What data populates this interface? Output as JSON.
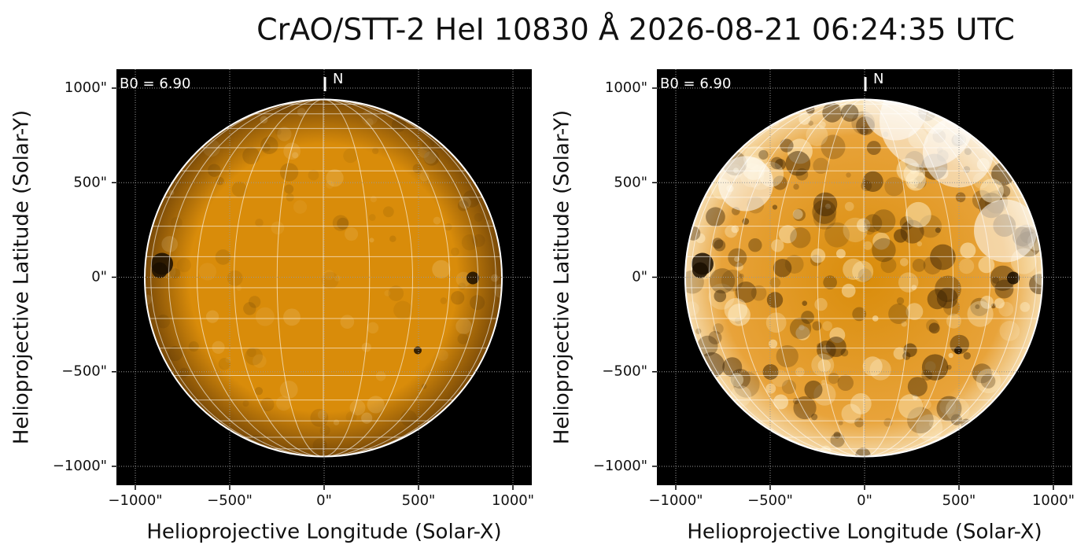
{
  "title": "CrAO/STT-2 HeI 10830 Å 2026-08-21 06:24:35 UTC",
  "chart_data": [
    {
      "type": "image",
      "xlabel": "Helioprojective Longitude (Solar-X)",
      "ylabel": "Helioprojective Latitude (Solar-Y)",
      "annotations": [
        "B0 = 6.90",
        "N"
      ],
      "color": "#d98c0a",
      "grid": true,
      "xlim": [
        -1100,
        1100
      ],
      "ylim": [
        -1100,
        1100
      ],
      "xticks": [
        {
          "value": -1000,
          "label": "−1000\""
        },
        {
          "value": -500,
          "label": "−500\""
        },
        {
          "value": 0,
          "label": "0\""
        },
        {
          "value": 500,
          "label": "500\""
        },
        {
          "value": 1000,
          "label": "1000\""
        }
      ],
      "yticks": [
        {
          "value": -1000,
          "label": "−1000\""
        },
        {
          "value": -500,
          "label": "−500\""
        },
        {
          "value": 0,
          "label": "0\""
        },
        {
          "value": 500,
          "label": "500\""
        },
        {
          "value": 1000,
          "label": "1000\""
        }
      ]
    },
    {
      "type": "image",
      "xlabel": "Helioprojective Longitude (Solar-X)",
      "ylabel": "Helioprojective Latitude (Solar-Y)",
      "annotations": [
        "B0 = 6.90",
        "N"
      ],
      "color": "#d98c0a",
      "grid": true,
      "xlim": [
        -1100,
        1100
      ],
      "ylim": [
        -1100,
        1100
      ],
      "xticks": [
        {
          "value": -1000,
          "label": "−1000\""
        },
        {
          "value": -500,
          "label": "−500\""
        },
        {
          "value": 0,
          "label": "0\""
        },
        {
          "value": 500,
          "label": "500\""
        },
        {
          "value": 1000,
          "label": "1000\""
        }
      ],
      "yticks": [
        {
          "value": -1000,
          "label": "−1000\""
        },
        {
          "value": -500,
          "label": "−500\""
        },
        {
          "value": 0,
          "label": "0\""
        },
        {
          "value": 500,
          "label": "500\""
        },
        {
          "value": 1000,
          "label": "1000\""
        }
      ]
    }
  ]
}
